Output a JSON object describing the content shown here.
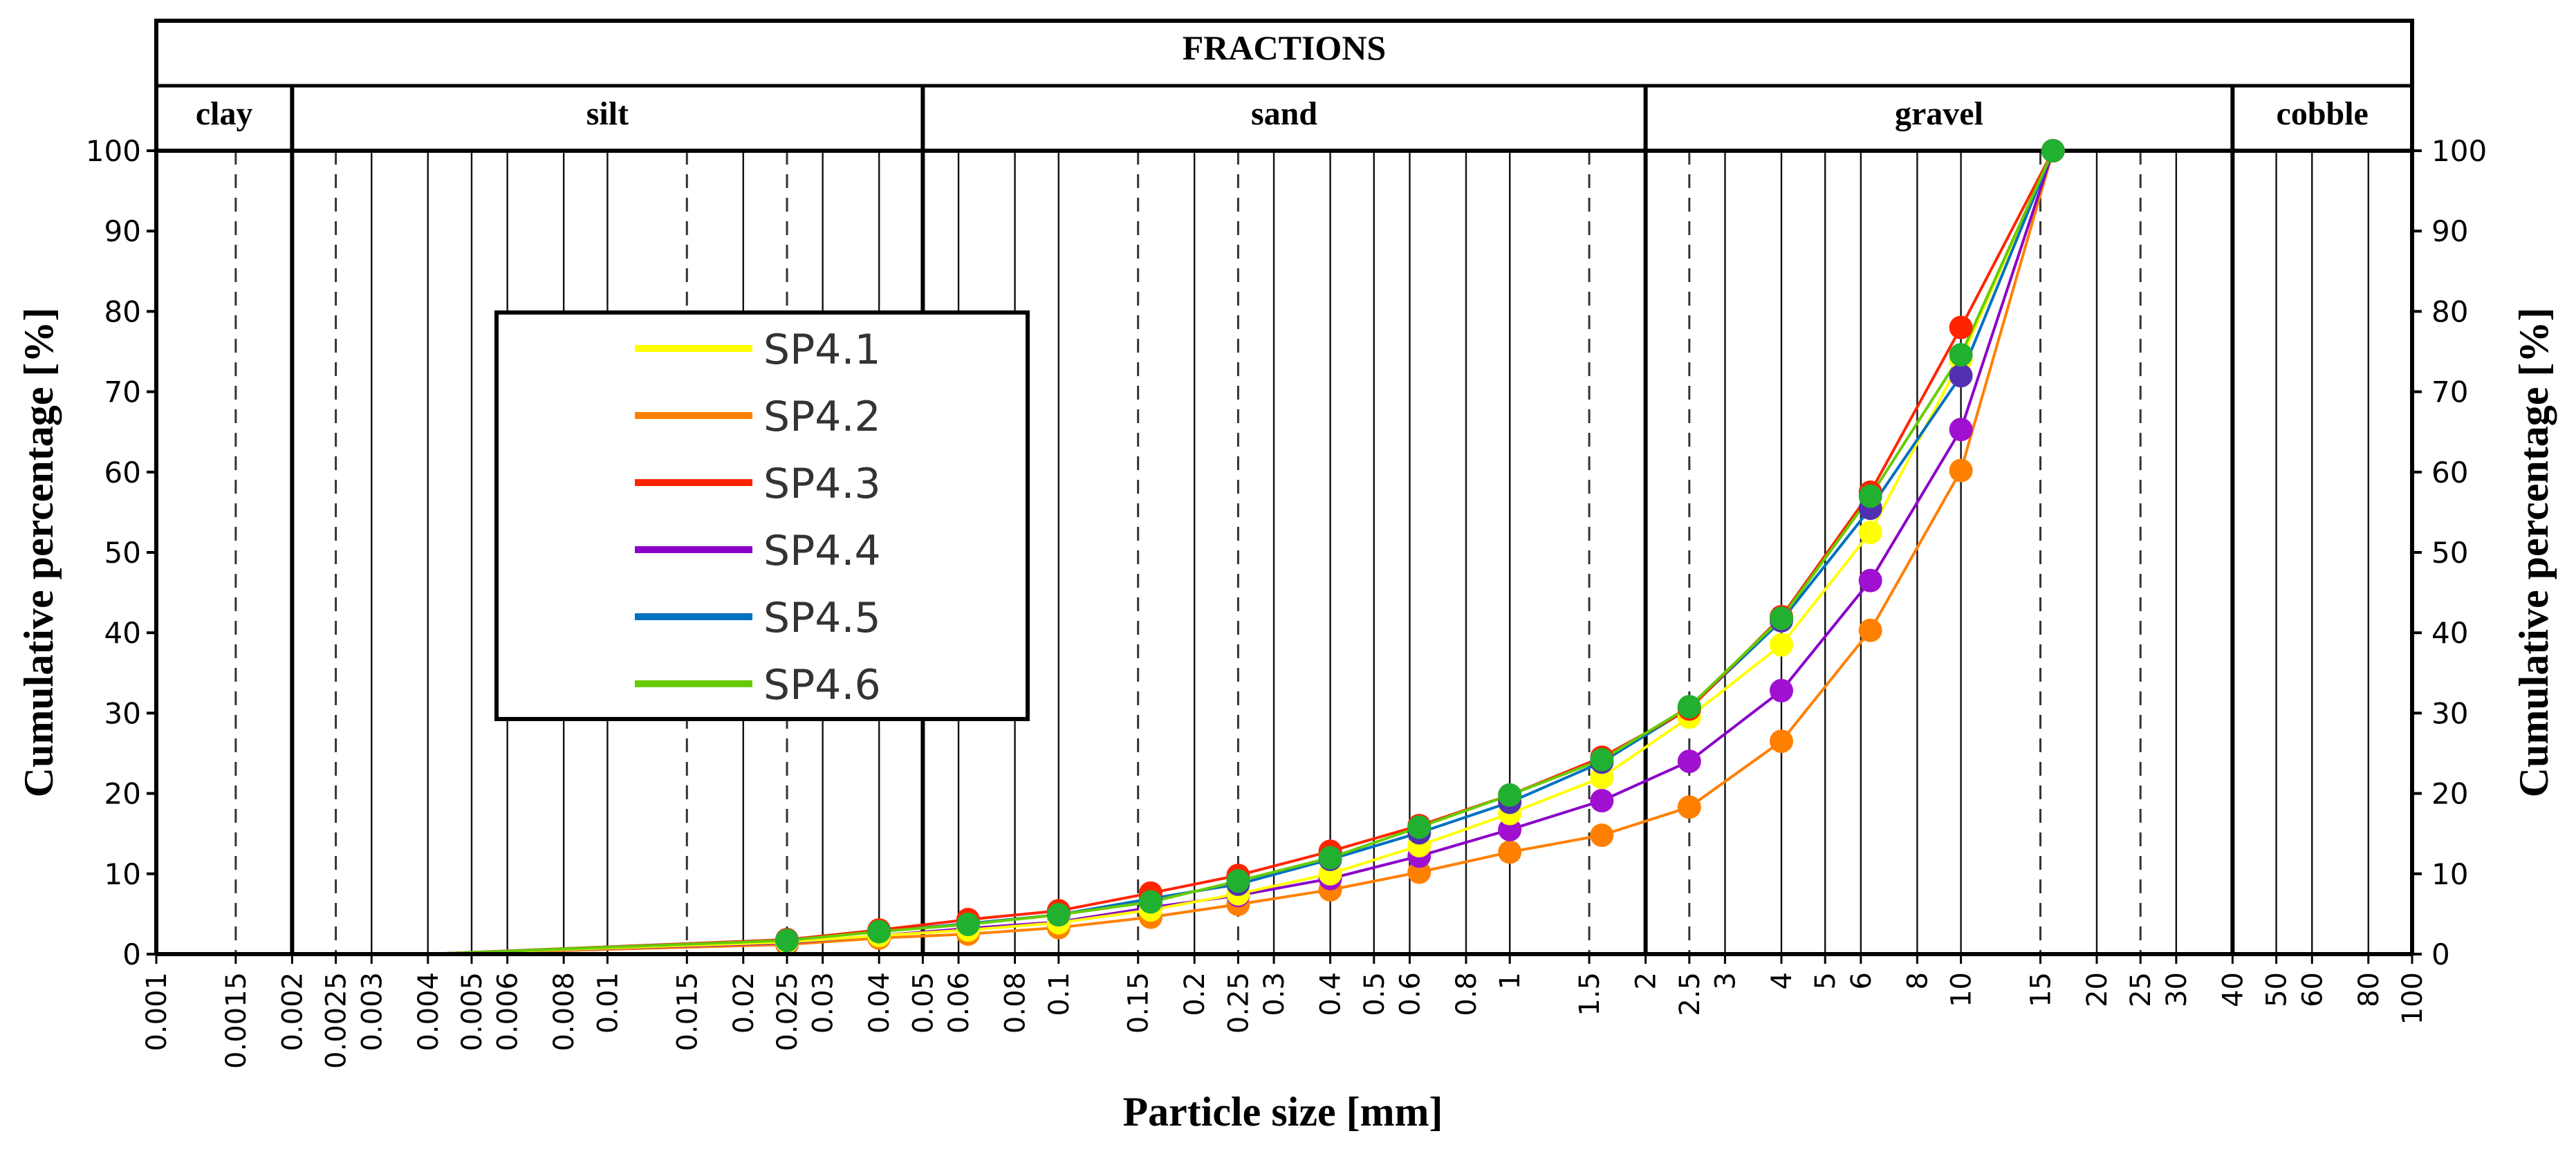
{
  "chart_data": {
    "type": "line",
    "title": "FRACTIONS",
    "xlabel": "Particle size [mm]",
    "ylabel": "Cumulative percentage [%]",
    "y2label": "Cumulative percentage [%]",
    "xscale": "log",
    "xlim": [
      0.001,
      100
    ],
    "ylim": [
      0,
      100
    ],
    "y2lim": [
      100,
      0
    ],
    "grid": true,
    "legend_position": "upper-left",
    "fractions": [
      {
        "name": "clay",
        "from": 0.001,
        "to": 0.002
      },
      {
        "name": "silt",
        "from": 0.002,
        "to": 0.05
      },
      {
        "name": "sand",
        "from": 0.05,
        "to": 2
      },
      {
        "name": "gravel",
        "from": 2,
        "to": 40
      },
      {
        "name": "cobble",
        "from": 40,
        "to": 100
      }
    ],
    "x_tick_labels": [
      {
        "value": 0.001,
        "label": "0.001"
      },
      {
        "value": 0.0015,
        "label": "0.0015"
      },
      {
        "value": 0.002,
        "label": "0.002"
      },
      {
        "value": 0.0025,
        "label": "0.0025"
      },
      {
        "value": 0.003,
        "label": "0.003"
      },
      {
        "value": 0.004,
        "label": "0.004"
      },
      {
        "value": 0.005,
        "label": "0.005"
      },
      {
        "value": 0.006,
        "label": "0.006"
      },
      {
        "value": 0.008,
        "label": "0.008"
      },
      {
        "value": 0.01,
        "label": "0.01"
      },
      {
        "value": 0.015,
        "label": "0.015"
      },
      {
        "value": 0.02,
        "label": "0.02"
      },
      {
        "value": 0.025,
        "label": "0.025"
      },
      {
        "value": 0.03,
        "label": "0.03"
      },
      {
        "value": 0.04,
        "label": "0.04"
      },
      {
        "value": 0.05,
        "label": "0.05"
      },
      {
        "value": 0.06,
        "label": "0.06"
      },
      {
        "value": 0.08,
        "label": "0.08"
      },
      {
        "value": 0.1,
        "label": "0.1"
      },
      {
        "value": 0.15,
        "label": "0.15"
      },
      {
        "value": 0.2,
        "label": "0.2"
      },
      {
        "value": 0.25,
        "label": "0.25"
      },
      {
        "value": 0.3,
        "label": "0.3"
      },
      {
        "value": 0.4,
        "label": "0.4"
      },
      {
        "value": 0.5,
        "label": "0.5"
      },
      {
        "value": 0.6,
        "label": "0.6"
      },
      {
        "value": 0.8,
        "label": "0.8"
      },
      {
        "value": 1,
        "label": "1"
      },
      {
        "value": 1.5,
        "label": "1.5"
      },
      {
        "value": 2,
        "label": "2"
      },
      {
        "value": 2.5,
        "label": "2.5"
      },
      {
        "value": 3,
        "label": "3"
      },
      {
        "value": 4,
        "label": "4"
      },
      {
        "value": 5,
        "label": "5"
      },
      {
        "value": 6,
        "label": "6"
      },
      {
        "value": 8,
        "label": "8"
      },
      {
        "value": 10,
        "label": "10"
      },
      {
        "value": 15,
        "label": "15"
      },
      {
        "value": 20,
        "label": "20"
      },
      {
        "value": 25,
        "label": "25"
      },
      {
        "value": 30,
        "label": "30"
      },
      {
        "value": 40,
        "label": "40"
      },
      {
        "value": 50,
        "label": "50"
      },
      {
        "value": 60,
        "label": "60"
      },
      {
        "value": 80,
        "label": "80"
      },
      {
        "value": 100,
        "label": "100"
      }
    ],
    "dashed_gridlines": [
      0.0015,
      0.0025,
      0.015,
      0.025,
      0.15,
      0.25,
      1.5,
      2.5,
      15,
      25
    ],
    "y_ticks": [
      0,
      10,
      20,
      30,
      40,
      50,
      60,
      70,
      80,
      90,
      100
    ],
    "y2_ticks": [
      100,
      90,
      80,
      70,
      60,
      50,
      40,
      30,
      20,
      10,
      0
    ],
    "x": [
      0.004,
      0.025,
      0.04,
      0.063,
      0.1,
      0.16,
      0.25,
      0.4,
      0.63,
      1,
      1.6,
      2.5,
      4,
      6.3,
      10,
      16
    ],
    "series": [
      {
        "name": "SP4.1",
        "color": "#ffff00",
        "marker_color": "#ffff00",
        "values": [
          0,
          1.5,
          2.3,
          3.0,
          3.9,
          5.5,
          7.5,
          10.0,
          13.5,
          17.5,
          22.0,
          29.5,
          38.5,
          52.5,
          74.0,
          100
        ]
      },
      {
        "name": "SP4.2",
        "color": "#ff8000",
        "marker_color": "#ff8000",
        "values": [
          0,
          1.2,
          2.0,
          2.5,
          3.3,
          4.6,
          6.2,
          8.0,
          10.2,
          12.7,
          14.8,
          18.3,
          26.5,
          40.3,
          60.2,
          100
        ]
      },
      {
        "name": "SP4.3",
        "color": "#ff2400",
        "marker_color": "#ff2400",
        "values": [
          0,
          1.8,
          3.0,
          4.3,
          5.4,
          7.6,
          9.8,
          12.8,
          16.0,
          19.8,
          24.5,
          30.5,
          42.0,
          57.5,
          78.0,
          100
        ]
      },
      {
        "name": "SP4.4",
        "color": "#8b00c8",
        "marker_color": "#a010d0",
        "values": [
          0,
          1.4,
          2.3,
          3.2,
          4.0,
          5.8,
          7.3,
          9.4,
          12.2,
          15.5,
          19.1,
          24.0,
          32.8,
          46.5,
          65.3,
          100
        ]
      },
      {
        "name": "SP4.5",
        "color": "#0070c0",
        "marker_color": "#5030b0",
        "values": [
          0,
          1.8,
          2.8,
          3.8,
          4.9,
          6.9,
          8.7,
          11.8,
          15.1,
          18.9,
          23.9,
          30.6,
          41.5,
          55.5,
          72.0,
          100
        ]
      },
      {
        "name": "SP4.6",
        "color": "#66cc00",
        "marker_color": "#22b030",
        "values": [
          0,
          1.7,
          2.8,
          3.7,
          4.9,
          6.5,
          9.1,
          12.0,
          15.8,
          19.8,
          24.2,
          30.8,
          41.8,
          57.0,
          74.6,
          100
        ]
      }
    ]
  }
}
